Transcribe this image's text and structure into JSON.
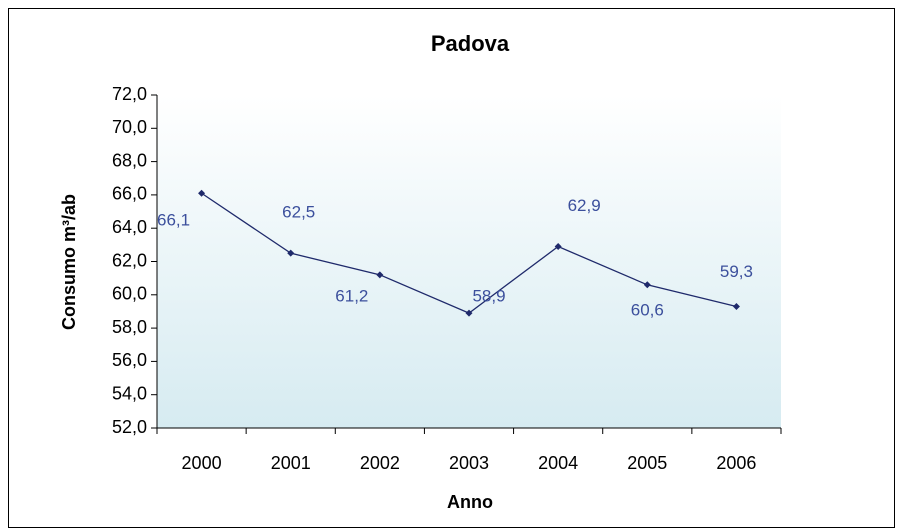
{
  "chart_data": {
    "type": "line",
    "title": "Padova",
    "x_label": "Anno",
    "y_label": "Consumo m³/ab",
    "categories": [
      "2000",
      "2001",
      "2002",
      "2003",
      "2004",
      "2005",
      "2006"
    ],
    "series": [
      {
        "name": "Padova",
        "color": "#1f2a6b",
        "values": [
          66.1,
          62.5,
          61.2,
          58.9,
          62.9,
          60.6,
          59.3
        ],
        "value_labels": [
          "66,1",
          "62,5",
          "61,2",
          "58,9",
          "62,9",
          "60,6",
          "59,3"
        ]
      }
    ],
    "ylim": [
      52,
      72
    ],
    "yticks": [
      {
        "value": 52,
        "label": "52,0"
      },
      {
        "value": 54,
        "label": "54,0"
      },
      {
        "value": 56,
        "label": "56,0"
      },
      {
        "value": 58,
        "label": "58,0"
      },
      {
        "value": 60,
        "label": "60,0"
      },
      {
        "value": 62,
        "label": "62,0"
      },
      {
        "value": 64,
        "label": "64,0"
      },
      {
        "value": 66,
        "label": "66,0"
      },
      {
        "value": 68,
        "label": "68,0"
      },
      {
        "value": 70,
        "label": "70,0"
      },
      {
        "value": 72,
        "label": "72,0"
      }
    ],
    "grid": false
  }
}
